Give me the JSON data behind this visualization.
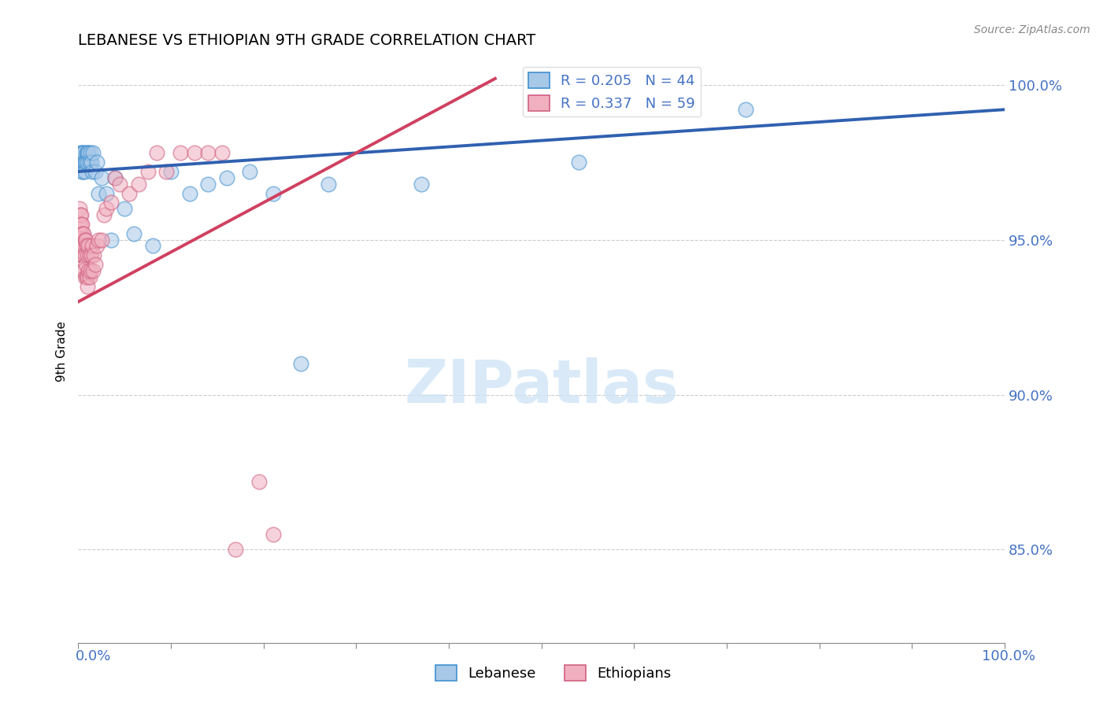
{
  "title": "LEBANESE VS ETHIOPIAN 9TH GRADE CORRELATION CHART",
  "source": "Source: ZipAtlas.com",
  "ylabel": "9th Grade",
  "legend_blue_r": "R = 0.205",
  "legend_blue_n": "N = 44",
  "legend_pink_r": "R = 0.337",
  "legend_pink_n": "N = 59",
  "blue_fill": "#a8c8e8",
  "blue_edge": "#4090d0",
  "pink_fill": "#f0b0c0",
  "pink_edge": "#d06080",
  "blue_line_color": "#3060b0",
  "pink_line_color": "#d04060",
  "watermark_color": "#d0e4f5",
  "right_label_color": "#4472c4",
  "blue_x": [
    0.001,
    0.002,
    0.003,
    0.003,
    0.004,
    0.004,
    0.005,
    0.005,
    0.005,
    0.006,
    0.006,
    0.007,
    0.007,
    0.008,
    0.009,
    0.01,
    0.01,
    0.011,
    0.012,
    0.013,
    0.014,
    0.015,
    0.016,
    0.018,
    0.02,
    0.022,
    0.025,
    0.03,
    0.035,
    0.04,
    0.05,
    0.06,
    0.08,
    0.1,
    0.12,
    0.14,
    0.16,
    0.185,
    0.21,
    0.24,
    0.27,
    0.37,
    0.54,
    0.72
  ],
  "blue_y": [
    0.975,
    0.978,
    0.975,
    0.975,
    0.972,
    0.978,
    0.978,
    0.975,
    0.972,
    0.975,
    0.978,
    0.975,
    0.972,
    0.975,
    0.978,
    0.978,
    0.975,
    0.978,
    0.975,
    0.978,
    0.975,
    0.972,
    0.978,
    0.972,
    0.975,
    0.965,
    0.97,
    0.965,
    0.95,
    0.97,
    0.96,
    0.952,
    0.948,
    0.972,
    0.965,
    0.968,
    0.97,
    0.972,
    0.965,
    0.91,
    0.968,
    0.968,
    0.975,
    0.992
  ],
  "pink_x": [
    0.001,
    0.001,
    0.002,
    0.002,
    0.002,
    0.003,
    0.003,
    0.003,
    0.003,
    0.004,
    0.004,
    0.004,
    0.005,
    0.005,
    0.005,
    0.005,
    0.006,
    0.006,
    0.006,
    0.007,
    0.007,
    0.007,
    0.008,
    0.008,
    0.009,
    0.009,
    0.01,
    0.01,
    0.01,
    0.011,
    0.011,
    0.012,
    0.012,
    0.013,
    0.014,
    0.015,
    0.016,
    0.017,
    0.018,
    0.02,
    0.022,
    0.025,
    0.028,
    0.03,
    0.035,
    0.04,
    0.045,
    0.055,
    0.065,
    0.075,
    0.085,
    0.095,
    0.11,
    0.125,
    0.14,
    0.155,
    0.17,
    0.195,
    0.21
  ],
  "pink_y": [
    0.96,
    0.955,
    0.958,
    0.952,
    0.948,
    0.958,
    0.955,
    0.952,
    0.945,
    0.955,
    0.95,
    0.945,
    0.952,
    0.948,
    0.945,
    0.94,
    0.952,
    0.948,
    0.94,
    0.95,
    0.945,
    0.938,
    0.95,
    0.942,
    0.948,
    0.938,
    0.945,
    0.938,
    0.935,
    0.948,
    0.94,
    0.945,
    0.938,
    0.94,
    0.945,
    0.948,
    0.94,
    0.945,
    0.942,
    0.948,
    0.95,
    0.95,
    0.958,
    0.96,
    0.962,
    0.97,
    0.968,
    0.965,
    0.968,
    0.972,
    0.978,
    0.972,
    0.978,
    0.978,
    0.978,
    0.978,
    0.85,
    0.872,
    0.855
  ],
  "xmin": 0.0,
  "xmax": 1.0,
  "ymin": 0.82,
  "ymax": 1.008,
  "yticks": [
    0.85,
    0.9,
    0.95,
    1.0
  ],
  "ytick_labels": [
    "85.0%",
    "90.0%",
    "95.0%",
    "100.0%"
  ],
  "xtick_positions": [
    0.0,
    0.1,
    0.2,
    0.3,
    0.4,
    0.5,
    0.6,
    0.7,
    0.8,
    0.9,
    1.0
  ],
  "blue_line_x0": 0.0,
  "blue_line_x1": 1.0,
  "blue_line_y0": 0.972,
  "blue_line_y1": 0.992,
  "pink_line_x0": 0.0,
  "pink_line_x1": 0.45,
  "pink_line_y0": 0.93,
  "pink_line_y1": 1.002
}
